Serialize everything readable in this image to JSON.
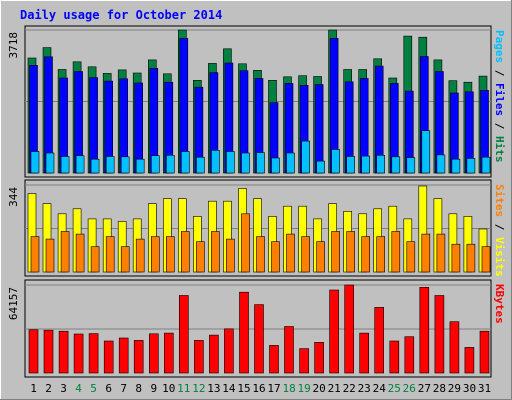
{
  "chart_data": {
    "type": "bar",
    "title": "Daily usage for October 2014",
    "categories": [
      "1",
      "2",
      "3",
      "4",
      "5",
      "6",
      "7",
      "8",
      "9",
      "10",
      "11",
      "12",
      "13",
      "14",
      "15",
      "16",
      "17",
      "18",
      "19",
      "20",
      "21",
      "22",
      "23",
      "24",
      "25",
      "26",
      "27",
      "28",
      "29",
      "30",
      "31"
    ],
    "weekend_categories": [
      "4",
      "5",
      "11",
      "12",
      "18",
      "19",
      "25",
      "26"
    ],
    "panels": [
      {
        "id": "hits",
        "max_label": "3718",
        "ymax": 3718,
        "ylabel_parts": [
          {
            "text": "Pages",
            "color": "#00c0ff"
          },
          {
            "text": " / ",
            "color": "#000000"
          },
          {
            "text": "Files",
            "color": "#0000ff"
          },
          {
            "text": " / ",
            "color": "#000000"
          },
          {
            "text": "Hits",
            "color": "#008040"
          }
        ],
        "series": [
          {
            "key": "hits",
            "color": "#008040",
            "values": [
              2990,
              3260,
              2690,
              2890,
              2760,
              2590,
              2680,
              2600,
              2940,
              2580,
              3718,
              2410,
              2850,
              3230,
              2840,
              2670,
              2410,
              2500,
              2530,
              2510,
              3718,
              2690,
              2690,
              2970,
              2470,
              3560,
              3530,
              2940,
              2400,
              2360,
              2520
            ]
          },
          {
            "key": "files",
            "color": "#0000ff",
            "values": [
              2800,
              3020,
              2470,
              2640,
              2480,
              2390,
              2450,
              2340,
              2720,
              2360,
              3500,
              2230,
              2610,
              2860,
              2660,
              2460,
              1830,
              2330,
              2280,
              2300,
              3500,
              2370,
              2460,
              2780,
              2330,
              2130,
              3030,
              2640,
              2080,
              2110,
              2150
            ]
          },
          {
            "key": "pages",
            "color": "#00c0ff",
            "values": [
              560,
              520,
              430,
              450,
              360,
              430,
              420,
              360,
              450,
              460,
              560,
              410,
              590,
              560,
              520,
              530,
              390,
              520,
              830,
              310,
              610,
              430,
              440,
              460,
              420,
              400,
              1100,
              470,
              360,
              380,
              410
            ]
          }
        ]
      },
      {
        "id": "visits",
        "max_label": "344",
        "ymax": 344,
        "ylabel_parts": [
          {
            "text": "Sites",
            "color": "#ff8000"
          },
          {
            "text": " / ",
            "color": "#000000"
          },
          {
            "text": "Visits",
            "color": "#ffff00"
          }
        ],
        "series": [
          {
            "key": "visits",
            "color": "#ffff00",
            "values": [
              310,
              270,
              230,
              250,
              210,
              210,
              200,
              210,
              270,
              290,
              290,
              220,
              280,
              280,
              330,
              290,
              220,
              260,
              260,
              210,
              270,
              240,
              230,
              250,
              260,
              210,
              340,
              290,
              230,
              220,
              170
            ]
          },
          {
            "key": "sites",
            "color": "#ff8000",
            "values": [
              140,
              130,
              160,
              150,
              100,
              140,
              100,
              130,
              140,
              140,
              160,
              120,
              160,
              130,
              230,
              140,
              120,
              150,
              140,
              120,
              160,
              160,
              140,
              140,
              160,
              120,
              150,
              150,
              110,
              110,
              100
            ]
          }
        ]
      },
      {
        "id": "kbytes",
        "max_label": "64157",
        "ymax": 64157,
        "ylabel_parts": [
          {
            "text": "KBytes",
            "color": "#ff0000"
          }
        ],
        "series": [
          {
            "key": "kbytes",
            "color": "#ff0000",
            "values": [
              31500,
              31200,
              30500,
              28400,
              28700,
              23300,
              25500,
              23800,
              28600,
              29100,
              56500,
              23800,
              27600,
              32200,
              58900,
              49900,
              20100,
              33900,
              17800,
              22400,
              60500,
              64157,
              29100,
              47800,
              23300,
              26500,
              62500,
              56500,
              37400,
              18700,
              30500
            ]
          }
        ]
      }
    ],
    "colors": {
      "background": "#c0c0c0",
      "frame": "#000000",
      "title": "#0000ff",
      "weekday_label": "#000000",
      "weekend_label": "#008040"
    }
  }
}
